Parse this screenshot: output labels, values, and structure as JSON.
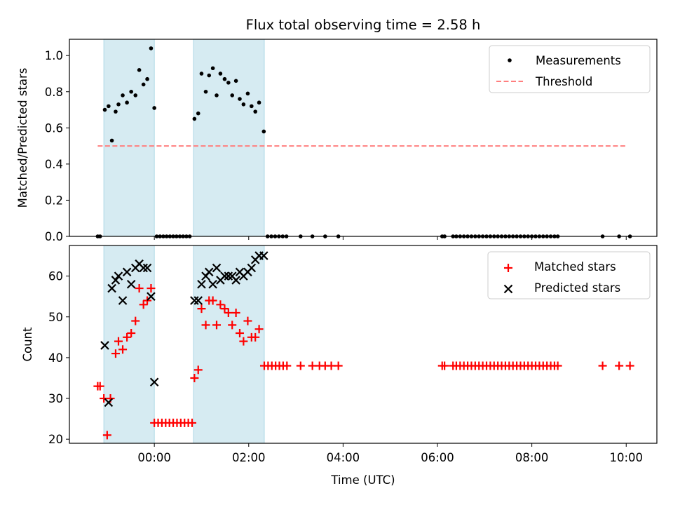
{
  "chart_data": {
    "title": "Flux total observing time = 2.58 h",
    "xlabel": "Time (UTC)",
    "x_unit": "hours relative to 00:00 UTC",
    "xlim": [
      -1.8,
      10.65
    ],
    "xticks": [
      0,
      2,
      4,
      6,
      8,
      10
    ],
    "xtick_labels": [
      "00:00",
      "02:00",
      "04:00",
      "06:00",
      "08:00",
      "10:00"
    ],
    "shaded_intervals": [
      [
        -1.07,
        0.0
      ],
      [
        0.83,
        2.33
      ]
    ],
    "shade_color": "#add8e6",
    "panels": [
      {
        "type": "scatter",
        "ylabel": "Matched/Predicted stars",
        "ylim": [
          0.0,
          1.09
        ],
        "yticks": [
          0.0,
          0.2,
          0.4,
          0.6,
          0.8,
          1.0
        ],
        "ytick_labels": [
          "0.0",
          "0.2",
          "0.4",
          "0.6",
          "0.8",
          "1.0"
        ],
        "legend_position": "top-right",
        "series": [
          {
            "name": "Measurements",
            "marker": "dot",
            "color": "#000000",
            "points": [
              [
                -1.2,
                0.0
              ],
              [
                -1.15,
                0.0
              ],
              [
                -1.05,
                0.7
              ],
              [
                -0.97,
                0.72
              ],
              [
                -0.9,
                0.53
              ],
              [
                -0.82,
                0.69
              ],
              [
                -0.76,
                0.73
              ],
              [
                -0.67,
                0.78
              ],
              [
                -0.58,
                0.74
              ],
              [
                -0.49,
                0.8
              ],
              [
                -0.4,
                0.78
              ],
              [
                -0.32,
                0.92
              ],
              [
                -0.23,
                0.84
              ],
              [
                -0.15,
                0.87
              ],
              [
                -0.07,
                1.04
              ],
              [
                0.0,
                0.71
              ],
              [
                0.05,
                0.0
              ],
              [
                0.12,
                0.0
              ],
              [
                0.19,
                0.0
              ],
              [
                0.26,
                0.0
              ],
              [
                0.33,
                0.0
              ],
              [
                0.4,
                0.0
              ],
              [
                0.47,
                0.0
              ],
              [
                0.54,
                0.0
              ],
              [
                0.61,
                0.0
              ],
              [
                0.68,
                0.0
              ],
              [
                0.75,
                0.0
              ],
              [
                0.85,
                0.65
              ],
              [
                0.93,
                0.68
              ],
              [
                1.0,
                0.9
              ],
              [
                1.09,
                0.8
              ],
              [
                1.16,
                0.89
              ],
              [
                1.24,
                0.93
              ],
              [
                1.32,
                0.78
              ],
              [
                1.4,
                0.9
              ],
              [
                1.49,
                0.87
              ],
              [
                1.57,
                0.85
              ],
              [
                1.65,
                0.78
              ],
              [
                1.73,
                0.86
              ],
              [
                1.81,
                0.76
              ],
              [
                1.89,
                0.73
              ],
              [
                1.98,
                0.79
              ],
              [
                2.06,
                0.72
              ],
              [
                2.14,
                0.69
              ],
              [
                2.22,
                0.74
              ],
              [
                2.32,
                0.58
              ],
              [
                2.4,
                0.0
              ],
              [
                2.48,
                0.0
              ],
              [
                2.56,
                0.0
              ],
              [
                2.64,
                0.0
              ],
              [
                2.72,
                0.0
              ],
              [
                2.8,
                0.0
              ],
              [
                3.1,
                0.0
              ],
              [
                3.35,
                0.0
              ],
              [
                3.62,
                0.0
              ],
              [
                3.9,
                0.0
              ],
              [
                6.1,
                0.0
              ],
              [
                6.15,
                0.0
              ],
              [
                6.33,
                0.0
              ],
              [
                6.4,
                0.0
              ],
              [
                6.48,
                0.0
              ],
              [
                6.56,
                0.0
              ],
              [
                6.64,
                0.0
              ],
              [
                6.72,
                0.0
              ],
              [
                6.8,
                0.0
              ],
              [
                6.88,
                0.0
              ],
              [
                6.96,
                0.0
              ],
              [
                7.04,
                0.0
              ],
              [
                7.12,
                0.0
              ],
              [
                7.2,
                0.0
              ],
              [
                7.28,
                0.0
              ],
              [
                7.36,
                0.0
              ],
              [
                7.44,
                0.0
              ],
              [
                7.52,
                0.0
              ],
              [
                7.6,
                0.0
              ],
              [
                7.68,
                0.0
              ],
              [
                7.76,
                0.0
              ],
              [
                7.84,
                0.0
              ],
              [
                7.92,
                0.0
              ],
              [
                8.0,
                0.0
              ],
              [
                8.08,
                0.0
              ],
              [
                8.16,
                0.0
              ],
              [
                8.24,
                0.0
              ],
              [
                8.32,
                0.0
              ],
              [
                8.4,
                0.0
              ],
              [
                8.48,
                0.0
              ],
              [
                8.55,
                0.0
              ],
              [
                9.5,
                0.0
              ],
              [
                9.85,
                0.0
              ],
              [
                10.08,
                0.0
              ]
            ]
          },
          {
            "name": "Threshold",
            "marker": "dashed-line",
            "color": "#ff7f7f",
            "points": [
              [
                -1.2,
                0.5
              ],
              [
                10.0,
                0.5
              ]
            ]
          }
        ]
      },
      {
        "type": "scatter",
        "ylabel": "Count",
        "ylim": [
          19,
          67.5
        ],
        "yticks": [
          20,
          30,
          40,
          50,
          60
        ],
        "ytick_labels": [
          "20",
          "30",
          "40",
          "50",
          "60"
        ],
        "legend_position": "top-right",
        "series": [
          {
            "name": "Matched stars",
            "marker": "plus",
            "color": "#ff0000",
            "points": [
              [
                -1.2,
                33
              ],
              [
                -1.15,
                33
              ],
              [
                -1.07,
                30
              ],
              [
                -1.0,
                21
              ],
              [
                -0.93,
                30
              ],
              [
                -0.82,
                41
              ],
              [
                -0.76,
                44
              ],
              [
                -0.67,
                42
              ],
              [
                -0.58,
                45
              ],
              [
                -0.49,
                46
              ],
              [
                -0.4,
                49
              ],
              [
                -0.32,
                57
              ],
              [
                -0.23,
                53
              ],
              [
                -0.15,
                54
              ],
              [
                -0.07,
                57
              ],
              [
                0.0,
                24
              ],
              [
                0.08,
                24
              ],
              [
                0.16,
                24
              ],
              [
                0.24,
                24
              ],
              [
                0.32,
                24
              ],
              [
                0.4,
                24
              ],
              [
                0.48,
                24
              ],
              [
                0.56,
                24
              ],
              [
                0.64,
                24
              ],
              [
                0.72,
                24
              ],
              [
                0.8,
                24
              ],
              [
                0.85,
                35
              ],
              [
                0.93,
                37
              ],
              [
                1.0,
                52
              ],
              [
                1.09,
                48
              ],
              [
                1.16,
                54
              ],
              [
                1.24,
                54
              ],
              [
                1.32,
                48
              ],
              [
                1.4,
                53
              ],
              [
                1.49,
                52
              ],
              [
                1.57,
                51
              ],
              [
                1.65,
                48
              ],
              [
                1.73,
                51
              ],
              [
                1.81,
                46
              ],
              [
                1.89,
                44
              ],
              [
                1.98,
                49
              ],
              [
                2.06,
                45
              ],
              [
                2.14,
                45
              ],
              [
                2.22,
                47
              ],
              [
                2.33,
                38
              ],
              [
                2.41,
                38
              ],
              [
                2.49,
                38
              ],
              [
                2.57,
                38
              ],
              [
                2.65,
                38
              ],
              [
                2.73,
                38
              ],
              [
                2.81,
                38
              ],
              [
                3.1,
                38
              ],
              [
                3.35,
                38
              ],
              [
                3.5,
                38
              ],
              [
                3.62,
                38
              ],
              [
                3.75,
                38
              ],
              [
                3.9,
                38
              ],
              [
                6.1,
                38
              ],
              [
                6.15,
                38
              ],
              [
                6.33,
                38
              ],
              [
                6.4,
                38
              ],
              [
                6.48,
                38
              ],
              [
                6.56,
                38
              ],
              [
                6.64,
                38
              ],
              [
                6.72,
                38
              ],
              [
                6.8,
                38
              ],
              [
                6.88,
                38
              ],
              [
                6.96,
                38
              ],
              [
                7.04,
                38
              ],
              [
                7.12,
                38
              ],
              [
                7.2,
                38
              ],
              [
                7.28,
                38
              ],
              [
                7.36,
                38
              ],
              [
                7.44,
                38
              ],
              [
                7.52,
                38
              ],
              [
                7.6,
                38
              ],
              [
                7.68,
                38
              ],
              [
                7.76,
                38
              ],
              [
                7.84,
                38
              ],
              [
                7.92,
                38
              ],
              [
                8.0,
                38
              ],
              [
                8.08,
                38
              ],
              [
                8.16,
                38
              ],
              [
                8.24,
                38
              ],
              [
                8.32,
                38
              ],
              [
                8.4,
                38
              ],
              [
                8.48,
                38
              ],
              [
                8.55,
                38
              ],
              [
                9.5,
                38
              ],
              [
                9.85,
                38
              ],
              [
                10.08,
                38
              ]
            ]
          },
          {
            "name": "Predicted stars",
            "marker": "x",
            "color": "#000000",
            "points": [
              [
                -1.05,
                43
              ],
              [
                -0.97,
                29
              ],
              [
                -0.9,
                57
              ],
              [
                -0.82,
                59
              ],
              [
                -0.76,
                60
              ],
              [
                -0.67,
                54
              ],
              [
                -0.58,
                61
              ],
              [
                -0.49,
                58
              ],
              [
                -0.4,
                62
              ],
              [
                -0.32,
                63
              ],
              [
                -0.23,
                62
              ],
              [
                -0.15,
                62
              ],
              [
                -0.07,
                55
              ],
              [
                0.0,
                34
              ],
              [
                0.85,
                54
              ],
              [
                0.93,
                54
              ],
              [
                1.0,
                58
              ],
              [
                1.09,
                60
              ],
              [
                1.16,
                61
              ],
              [
                1.24,
                58
              ],
              [
                1.32,
                62
              ],
              [
                1.4,
                59
              ],
              [
                1.49,
                60
              ],
              [
                1.57,
                60
              ],
              [
                1.65,
                60
              ],
              [
                1.73,
                59
              ],
              [
                1.81,
                61
              ],
              [
                1.89,
                60
              ],
              [
                1.98,
                61
              ],
              [
                2.06,
                62
              ],
              [
                2.14,
                64
              ],
              [
                2.22,
                65
              ],
              [
                2.32,
                65
              ]
            ]
          }
        ]
      }
    ]
  }
}
